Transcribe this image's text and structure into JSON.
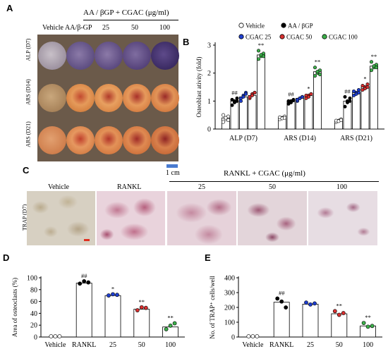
{
  "panelA": {
    "letter": "A",
    "treatment_header": "AA / βGP + CGAC (μg/ml)",
    "columns": [
      "Vehicle",
      "AA/β-GP",
      "25",
      "50",
      "100"
    ],
    "rows": [
      "ALP (D7)",
      "ARS (D14)",
      "ARS (D21)"
    ],
    "scale_bar": "1 cm",
    "scale_bar_color": "#4a7bd0"
  },
  "panelC": {
    "letter": "C",
    "treatment_header": "RANKL + CGAC (μg/ml)",
    "columns": [
      "Vehicle",
      "RANKL",
      "25",
      "50",
      "100"
    ],
    "row_label": "TRAP (D7)",
    "scale_bar_color": "#e03020"
  },
  "chart_data": [
    {
      "id": "B",
      "letter": "B",
      "type": "bar",
      "ylabel": "Osteoblast ativity (fold)",
      "ylim": [
        0,
        3
      ],
      "yticks": [
        0,
        1,
        2,
        3
      ],
      "categories": [
        "ALP (D7)",
        "ARS (D14)",
        "ARS (D21)"
      ],
      "legend": [
        {
          "name": "Vehicle",
          "color": "#ffffff",
          "edge": "#000000"
        },
        {
          "name": "AA / βGP",
          "color": "#000000",
          "edge": "#000000"
        },
        {
          "name": "CGAC 25",
          "color": "#1f3fd0",
          "edge": "#000000"
        },
        {
          "name": "CGAC 50",
          "color": "#d83030",
          "edge": "#000000"
        },
        {
          "name": "CGAC 100",
          "color": "#3cb04a",
          "edge": "#000000"
        }
      ],
      "series": [
        {
          "name": "Vehicle",
          "values": [
            0.4,
            0.4,
            0.3
          ],
          "points": [
            [
              0.25,
              0.35,
              0.45,
              0.5,
              0.4,
              0.32
            ],
            [
              0.35,
              0.4,
              0.45,
              0.42,
              0.38,
              0.4
            ],
            [
              0.25,
              0.3,
              0.35,
              0.3,
              0.28,
              0.32
            ]
          ],
          "sig": [
            "",
            "",
            ""
          ]
        },
        {
          "name": "AA / βGP",
          "values": [
            1.0,
            1.0,
            1.0
          ],
          "points": [
            [
              0.85,
              1.0,
              1.1,
              1.05,
              0.95,
              1.0
            ],
            [
              0.9,
              1.0,
              1.05,
              1.0,
              0.95,
              1.02
            ],
            [
              0.8,
              1.0,
              1.1,
              1.15,
              0.95,
              1.0
            ]
          ],
          "sig": [
            "##",
            "##",
            "##"
          ]
        },
        {
          "name": "CGAC 25",
          "values": [
            1.15,
            1.1,
            1.3
          ],
          "points": [
            [
              1.0,
              1.2,
              1.3,
              1.1,
              1.15,
              1.25
            ],
            [
              1.0,
              1.1,
              1.15,
              1.05,
              1.1,
              1.15
            ],
            [
              1.2,
              1.3,
              1.4,
              1.35,
              1.25,
              1.3
            ]
          ],
          "sig": [
            "",
            "",
            ""
          ]
        },
        {
          "name": "CGAC 50",
          "values": [
            1.2,
            1.2,
            1.5
          ],
          "points": [
            [
              1.1,
              1.25,
              1.3,
              1.15,
              1.2,
              1.3
            ],
            [
              1.1,
              1.2,
              1.25,
              1.2,
              1.15,
              1.25
            ],
            [
              1.4,
              1.5,
              1.6,
              1.55,
              1.45,
              1.5
            ]
          ],
          "sig": [
            "",
            "*",
            "*"
          ]
        },
        {
          "name": "CGAC 100",
          "values": [
            2.65,
            2.05,
            2.25
          ],
          "points": [
            [
              2.5,
              2.6,
              2.7,
              2.8,
              2.65,
              2.6
            ],
            [
              1.9,
              2.0,
              2.1,
              2.2,
              2.05,
              1.95
            ],
            [
              2.1,
              2.2,
              2.3,
              2.4,
              2.25,
              2.2
            ]
          ],
          "sig": [
            "**",
            "**",
            "**"
          ]
        }
      ]
    },
    {
      "id": "D",
      "letter": "D",
      "type": "bar",
      "ylabel": "Area of osteoclasts (%)",
      "ylim": [
        0,
        100
      ],
      "yticks": [
        0,
        20,
        40,
        60,
        80,
        100
      ],
      "categories": [
        "Vehicle",
        "RANKL",
        "25",
        "50",
        "100"
      ],
      "colors": [
        "#ffffff",
        "#000000",
        "#1f3fd0",
        "#d83030",
        "#3cb04a"
      ],
      "values": [
        0,
        91,
        70,
        47,
        17
      ],
      "points": [
        [
          0,
          0,
          0
        ],
        [
          89,
          93,
          91
        ],
        [
          69,
          71,
          70
        ],
        [
          44,
          49,
          48
        ],
        [
          12,
          18,
          22
        ]
      ],
      "sig": [
        "",
        "##",
        "*",
        "**",
        "**"
      ]
    },
    {
      "id": "E",
      "letter": "E",
      "type": "bar",
      "ylabel": "No. of TRAP⁺ cells/well",
      "ylim": [
        0,
        400
      ],
      "yticks": [
        0,
        100,
        200,
        300,
        400
      ],
      "categories": [
        "Vehicle",
        "RANKL",
        "25",
        "50",
        "100"
      ],
      "colors": [
        "#ffffff",
        "#000000",
        "#1f3fd0",
        "#d83030",
        "#3cb04a"
      ],
      "values": [
        0,
        235,
        222,
        157,
        75
      ],
      "points": [
        [
          0,
          0,
          0
        ],
        [
          255,
          235,
          195
        ],
        [
          228,
          215,
          222
        ],
        [
          170,
          145,
          157
        ],
        [
          90,
          65,
          70
        ]
      ],
      "sig": [
        "",
        "##",
        "",
        "**",
        "**"
      ]
    }
  ]
}
